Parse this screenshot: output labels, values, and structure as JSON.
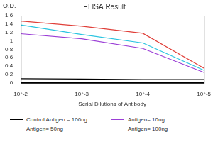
{
  "chart_data": {
    "type": "line",
    "title": "ELISA Result",
    "y_label": "O.D.",
    "x_label": "Serial Dilutions of Antibody",
    "categories": [
      "10^-2",
      "10^-3",
      "10^-4",
      "10^-5"
    ],
    "series": [
      {
        "name": "Control Antigen = 100ng",
        "color": "#000000",
        "values": [
          0.1,
          0.09,
          0.08,
          0.08
        ]
      },
      {
        "name": "Antigen= 10ng",
        "color": "#9b3fd6",
        "values": [
          1.17,
          1.05,
          0.82,
          0.25
        ]
      },
      {
        "name": "Antigen= 50ng",
        "color": "#29c4e0",
        "values": [
          1.38,
          1.15,
          0.95,
          0.3
        ]
      },
      {
        "name": "Antigen= 100ng",
        "color": "#e0403a",
        "values": [
          1.47,
          1.35,
          1.18,
          0.35
        ]
      }
    ],
    "ylim": [
      0,
      1.6
    ],
    "yticks": [
      0,
      0.2,
      0.4,
      0.6,
      0.8,
      1,
      1.2,
      1.4,
      1.6
    ],
    "grid": false,
    "legend": "bottom"
  }
}
